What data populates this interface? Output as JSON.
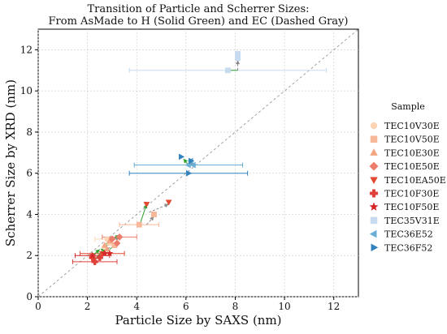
{
  "chart_data": {
    "type": "scatter",
    "title_line1": "Transition of Particle and Scherrer Sizes:",
    "title_line2": "From AsMade to H (Solid Green) and EC (Dashed Gray)",
    "xlabel": "Particle Size by SAXS (nm)",
    "ylabel": "Scherrer Size by XRD (nm)",
    "xlim": [
      0,
      13
    ],
    "ylim": [
      0,
      13
    ],
    "xticks": [
      0,
      2,
      4,
      6,
      8,
      10,
      12
    ],
    "yticks": [
      0,
      2,
      4,
      6,
      8,
      10,
      12
    ],
    "grid": true,
    "legend_title": "Sample",
    "legend_position": "right",
    "colors": {
      "identity_line": "#8c8c8c",
      "h_arrow": "#2ca02c",
      "ec_arrow": "#8c8c8c"
    },
    "series": [
      {
        "name": "TEC10V30E",
        "marker": "circle",
        "color": "#fcd5b5",
        "points": [
          {
            "x": 2.8,
            "y": 2.8,
            "xerr": 0.5
          },
          {
            "x": 2.7,
            "y": 2.4
          },
          {
            "x": 2.9,
            "y": 2.6
          }
        ]
      },
      {
        "name": "TEC10V50E",
        "marker": "square",
        "color": "#f7b799",
        "points": [
          {
            "x": 4.1,
            "y": 3.5,
            "xerr": 0.8
          },
          {
            "x": 4.7,
            "y": 4.0
          },
          {
            "x": 3.1,
            "y": 2.5
          }
        ]
      },
      {
        "name": "TEC10E30E",
        "marker": "triangle-up",
        "color": "#f4a582",
        "points": [
          {
            "x": 2.9,
            "y": 2.7
          },
          {
            "x": 2.8,
            "y": 2.3
          },
          {
            "x": 2.7,
            "y": 2.5
          }
        ]
      },
      {
        "name": "TEC10E50E",
        "marker": "diamond",
        "color": "#ec7c6b",
        "points": [
          {
            "x": 3.3,
            "y": 2.9,
            "xerr": 0.7
          },
          {
            "x": 3.0,
            "y": 2.8
          },
          {
            "x": 3.2,
            "y": 2.6
          }
        ]
      },
      {
        "name": "TEC10EA50E",
        "marker": "triangle-down",
        "color": "#e34a33",
        "points": [
          {
            "x": 5.3,
            "y": 4.6
          },
          {
            "x": 4.4,
            "y": 4.5
          },
          {
            "x": 2.6,
            "y": 2.1,
            "xerr": 0.9
          }
        ]
      },
      {
        "name": "TEC10F30E",
        "marker": "plus",
        "color": "#e0403a",
        "points": [
          {
            "x": 2.3,
            "y": 1.7,
            "xerr": 0.9
          },
          {
            "x": 2.2,
            "y": 1.9
          },
          {
            "x": 2.5,
            "y": 1.9
          }
        ]
      },
      {
        "name": "TEC10F50E",
        "marker": "star",
        "color": "#d62728",
        "points": [
          {
            "x": 2.2,
            "y": 2.0,
            "xerr": 0.7
          },
          {
            "x": 2.7,
            "y": 2.1
          },
          {
            "x": 2.9,
            "y": 2.1
          }
        ]
      },
      {
        "name": "TEC35V31E",
        "marker": "square",
        "color": "#c6dbef",
        "points": [
          {
            "x": 8.1,
            "y": 11.8
          },
          {
            "x": 8.1,
            "y": 11.6
          },
          {
            "x": 7.7,
            "y": 11.0,
            "xerr": 4.0
          }
        ]
      },
      {
        "name": "TEC36E52",
        "marker": "triangle-left",
        "color": "#6baed6",
        "points": [
          {
            "x": 6.2,
            "y": 6.6
          },
          {
            "x": 6.3,
            "y": 6.4
          },
          {
            "x": 6.1,
            "y": 6.4,
            "xerr": 2.2
          }
        ]
      },
      {
        "name": "TEC36F52",
        "marker": "triangle-right",
        "color": "#3182bd",
        "points": [
          {
            "x": 5.8,
            "y": 6.8
          },
          {
            "x": 6.2,
            "y": 6.6
          },
          {
            "x": 6.1,
            "y": 6.0,
            "xerr": 2.4
          }
        ]
      }
    ],
    "transitions_h": [
      {
        "from": [
          8.1,
          11.0
        ],
        "to": [
          7.6,
          11.0
        ]
      },
      {
        "from": [
          6.1,
          6.4
        ],
        "to": [
          5.9,
          6.7
        ]
      },
      {
        "from": [
          4.1,
          3.4
        ],
        "to": [
          4.4,
          4.5
        ]
      },
      {
        "from": [
          2.8,
          2.6
        ],
        "to": [
          3.3,
          3.0
        ]
      },
      {
        "from": [
          2.6,
          2.1
        ],
        "to": [
          2.9,
          2.7
        ]
      },
      {
        "from": [
          2.3,
          1.8
        ],
        "to": [
          2.7,
          2.4
        ]
      },
      {
        "from": [
          2.2,
          2.0
        ],
        "to": [
          2.5,
          2.3
        ]
      },
      {
        "from": [
          2.9,
          2.3
        ],
        "to": [
          3.2,
          2.6
        ]
      }
    ],
    "transitions_ec": [
      {
        "from": [
          8.1,
          11.0
        ],
        "to": [
          8.1,
          11.5
        ]
      },
      {
        "from": [
          6.1,
          6.4
        ],
        "to": [
          6.3,
          6.5
        ]
      },
      {
        "from": [
          4.4,
          3.5
        ],
        "to": [
          4.7,
          3.9
        ]
      },
      {
        "from": [
          4.5,
          4.1
        ],
        "to": [
          5.3,
          4.5
        ]
      },
      {
        "from": [
          2.8,
          2.6
        ],
        "to": [
          3.3,
          2.9
        ]
      },
      {
        "from": [
          2.6,
          2.1
        ],
        "to": [
          2.9,
          2.4
        ]
      }
    ]
  }
}
